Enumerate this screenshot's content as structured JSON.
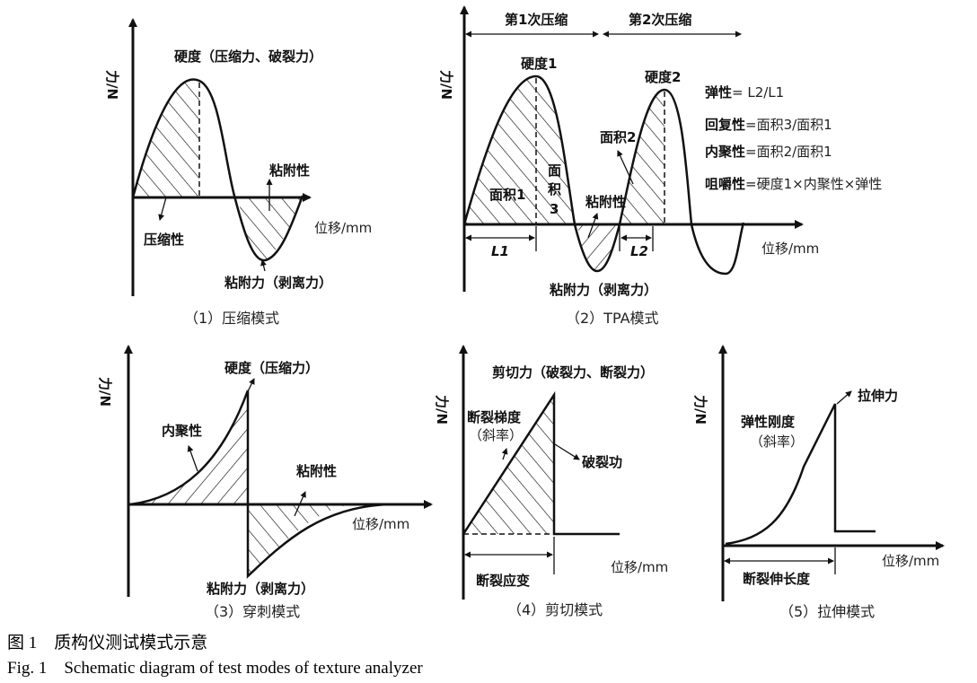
{
  "axis_y_label": "力/N",
  "axis_x_label": "位移/mm",
  "panel1": {
    "caption": "（1）压缩模式",
    "peak_label": "硬度（压缩力、破裂力）",
    "adhesiveness": "粘附性",
    "compressibility": "压缩性",
    "adhesive_force": "粘附力（剥离力）"
  },
  "panel2": {
    "caption": "（2）TPA模式",
    "first_compression": "第1次压缩",
    "second_compression": "第2次压缩",
    "hardness1": "硬度1",
    "hardness2": "硬度2",
    "area1": "面积1",
    "area2": "面积2",
    "area3": [
      "面",
      "积",
      "3"
    ],
    "adhesiveness": "粘附性",
    "adhesive_force": "粘附力（剥离力）",
    "L1": "L1",
    "L2": "L2",
    "formulas": [
      {
        "term": "弹性",
        "expr": "= L2/L1"
      },
      {
        "term": "回复性",
        "expr": "=面积3/面积1"
      },
      {
        "term": "内聚性",
        "expr": "=面积2/面积1"
      },
      {
        "term": "咀嚼性",
        "expr": "=硬度1×内聚性×弹性"
      }
    ]
  },
  "panel3": {
    "caption": "（3）穿刺模式",
    "peak_label": "硬度（压缩力）",
    "cohesiveness": "内聚性",
    "adhesiveness": "粘附性",
    "adhesive_force": "粘附力（剥离力）"
  },
  "panel4": {
    "caption": "（4）剪切模式",
    "peak_label": "剪切力（破裂力、断裂力）",
    "gradient": "断裂梯度",
    "slope": "（斜率）",
    "work": "破裂功",
    "strain": "断裂应变"
  },
  "panel5": {
    "caption": "（5）拉伸模式",
    "peak_label": "拉伸力",
    "stiffness": "弹性刚度",
    "slope": "（斜率）",
    "elongation": "断裂伸长度"
  },
  "figure_caption_cn": "图 1　质构仪测试模式示意",
  "figure_caption_en": "Fig. 1　Schematic diagram of test modes of texture analyzer"
}
